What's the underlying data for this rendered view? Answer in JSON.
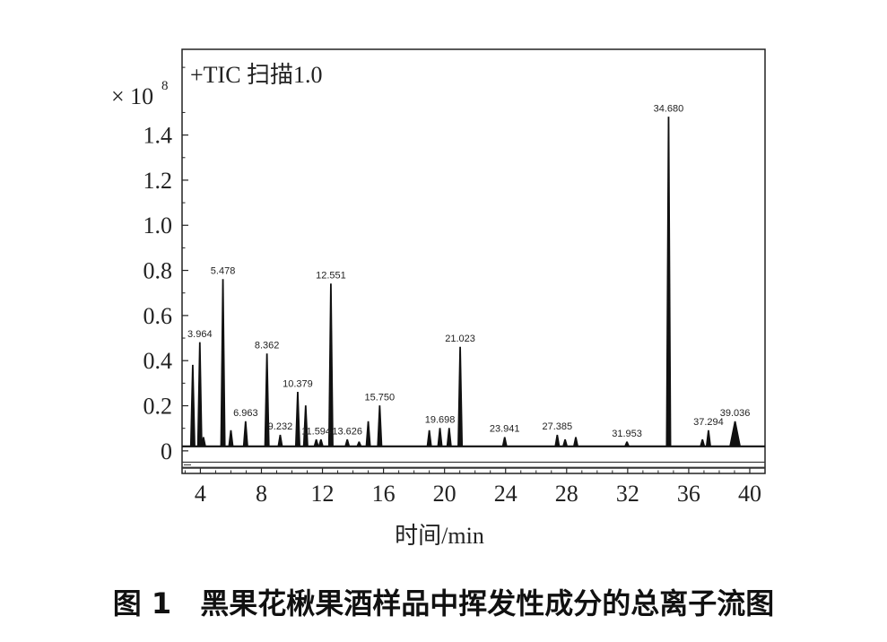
{
  "figure_caption": "图 1　黑果花楸果酒样品中挥发性成分的总离子流图",
  "chart_data": {
    "type": "line",
    "trace_label": "+TIC 扫描1.0",
    "y_multiplier": "× 10",
    "y_exponent": "8",
    "xlabel": "时间/min",
    "ylabel": "",
    "xlim": [
      2.8,
      41.0
    ],
    "ylim": [
      -0.1,
      1.78
    ],
    "x_ticks": [
      4,
      8,
      12,
      16,
      20,
      24,
      28,
      32,
      36,
      40
    ],
    "x_tick_labels": [
      "4",
      "8",
      "12",
      "16",
      "20",
      "24",
      "28",
      "32",
      "36",
      "40"
    ],
    "y_ticks": [
      0,
      0.2,
      0.4,
      0.6,
      0.8,
      1.0,
      1.2,
      1.4
    ],
    "y_tick_labels": [
      "0",
      "0.2",
      "0.4",
      "0.6",
      "0.8",
      "1.0",
      "1.2",
      "1.4"
    ],
    "baseline": 0.02,
    "labeled_peaks": [
      {
        "x": 3.964,
        "y": 0.48,
        "label": "3.964"
      },
      {
        "x": 5.478,
        "y": 0.76,
        "label": "5.478"
      },
      {
        "x": 6.963,
        "y": 0.13,
        "label": "6.963"
      },
      {
        "x": 8.362,
        "y": 0.43,
        "label": "8.362"
      },
      {
        "x": 9.232,
        "y": 0.07,
        "label": "9.232"
      },
      {
        "x": 10.379,
        "y": 0.26,
        "label": "10.379"
      },
      {
        "x": 11.594,
        "y": 0.05,
        "label": "11.594"
      },
      {
        "x": 13.626,
        "y": 0.05,
        "label": "13.626"
      },
      {
        "x": 12.551,
        "y": 0.74,
        "label": "12.551"
      },
      {
        "x": 15.75,
        "y": 0.2,
        "label": "15.750"
      },
      {
        "x": 19.698,
        "y": 0.1,
        "label": "19.698"
      },
      {
        "x": 21.023,
        "y": 0.46,
        "label": "21.023"
      },
      {
        "x": 23.941,
        "y": 0.06,
        "label": "23.941"
      },
      {
        "x": 27.385,
        "y": 0.07,
        "label": "27.385"
      },
      {
        "x": 31.953,
        "y": 0.04,
        "label": "31.953"
      },
      {
        "x": 34.68,
        "y": 1.48,
        "label": "34.680"
      },
      {
        "x": 37.294,
        "y": 0.09,
        "label": "37.294"
      },
      {
        "x": 39.036,
        "y": 0.13,
        "label": "39.036"
      }
    ],
    "minor_peaks": [
      {
        "x": 3.5,
        "y": 0.38
      },
      {
        "x": 4.2,
        "y": 0.06
      },
      {
        "x": 6.0,
        "y": 0.09
      },
      {
        "x": 10.9,
        "y": 0.2
      },
      {
        "x": 11.9,
        "y": 0.05
      },
      {
        "x": 14.4,
        "y": 0.04
      },
      {
        "x": 15.0,
        "y": 0.13
      },
      {
        "x": 19.0,
        "y": 0.09
      },
      {
        "x": 20.3,
        "y": 0.1
      },
      {
        "x": 27.9,
        "y": 0.05
      },
      {
        "x": 28.6,
        "y": 0.06
      },
      {
        "x": 36.9,
        "y": 0.05
      }
    ],
    "grid": false,
    "legend": "none"
  }
}
